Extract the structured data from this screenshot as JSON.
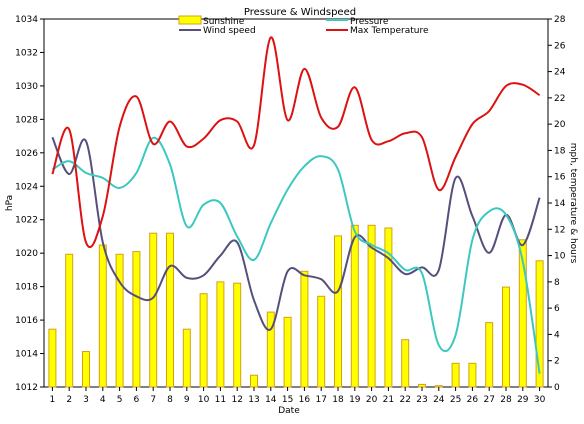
{
  "chart_data": {
    "type": "bar",
    "title": "Pressure & Windspeed",
    "xlabel": "Date",
    "ylabel_left": "hPa",
    "ylabel_right": "mph, temperature & hours",
    "categories": [
      "1",
      "2",
      "3",
      "4",
      "5",
      "6",
      "7",
      "8",
      "9",
      "10",
      "11",
      "12",
      "13",
      "14",
      "15",
      "16",
      "17",
      "18",
      "19",
      "20",
      "21",
      "22",
      "23",
      "24",
      "25",
      "26",
      "27",
      "28",
      "29",
      "30"
    ],
    "ylim_left": [
      1012,
      1034
    ],
    "ylim_right": [
      0,
      28
    ],
    "yticks_left": [
      "1012",
      "1014",
      "1016",
      "1018",
      "1020",
      "1022",
      "1024",
      "1026",
      "1028",
      "1030",
      "1032",
      "1034"
    ],
    "yticks_right": [
      "0",
      "2",
      "4",
      "6",
      "8",
      "10",
      "12",
      "14",
      "16",
      "18",
      "20",
      "22",
      "24",
      "26",
      "28"
    ],
    "legend_position": "top",
    "series": [
      {
        "name": "Sunshine",
        "type": "bar",
        "axis": "right",
        "color": "#FFFF00",
        "edge_color": "#D4A017",
        "values": [
          4.4,
          10.1,
          2.7,
          10.8,
          10.1,
          10.3,
          11.7,
          11.7,
          4.4,
          7.1,
          8.0,
          7.9,
          0.9,
          5.7,
          5.3,
          8.8,
          6.9,
          11.5,
          12.3,
          12.3,
          12.1,
          3.6,
          0.2,
          0.1,
          1.8,
          1.8,
          4.9,
          7.6,
          11.2,
          9.6
        ]
      },
      {
        "name": "Wind speed",
        "type": "line",
        "axis": "right",
        "color": "#55507A",
        "values": [
          19.0,
          16.2,
          18.7,
          11.0,
          8.0,
          6.9,
          6.8,
          9.2,
          8.3,
          8.5,
          10.0,
          11.0,
          6.6,
          4.4,
          8.8,
          8.5,
          8.2,
          7.3,
          11.4,
          10.6,
          9.8,
          8.6,
          9.1,
          8.9,
          15.9,
          13.0,
          10.2,
          13.1,
          10.8,
          14.4
        ]
      },
      {
        "name": "Pressure",
        "type": "line",
        "axis": "left",
        "color": "#3CC8C0",
        "values": [
          1025.0,
          1025.5,
          1024.8,
          1024.5,
          1023.9,
          1024.8,
          1026.9,
          1025.3,
          1021.6,
          1022.9,
          1023.0,
          1021.0,
          1019.6,
          1021.8,
          1023.8,
          1025.2,
          1025.8,
          1025.0,
          1021.3,
          1020.5,
          1020.0,
          1019.0,
          1018.8,
          1014.5,
          1015.1,
          1020.8,
          1022.5,
          1022.3,
          1019.5,
          1012.8
        ]
      },
      {
        "name": "Max Temperature",
        "type": "line",
        "axis": "right",
        "color": "#DD1111",
        "values": [
          16.2,
          19.6,
          11.0,
          13.0,
          19.8,
          22.1,
          18.5,
          20.2,
          18.3,
          18.9,
          20.3,
          20.2,
          18.4,
          26.6,
          20.3,
          24.2,
          20.5,
          19.8,
          22.8,
          18.8,
          18.7,
          19.3,
          19.0,
          15.0,
          17.5,
          20.0,
          21.0,
          22.9,
          23.0,
          22.2
        ]
      }
    ]
  }
}
